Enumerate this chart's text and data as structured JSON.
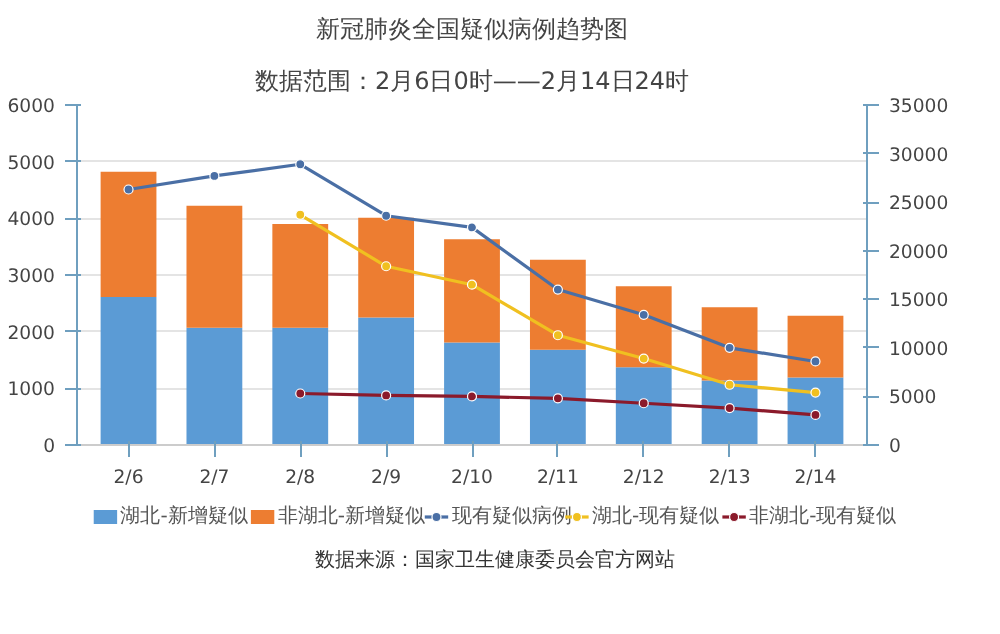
{
  "chart_data": {
    "type": "bar",
    "title": "新冠肺炎全国疑似病例趋势图",
    "subtitle": "数据范围：2月6日0时——2月14日24时",
    "categories": [
      "2/6",
      "2/7",
      "2/8",
      "2/9",
      "2/10",
      "2/11",
      "2/12",
      "2/13",
      "2/14"
    ],
    "stacked": true,
    "series": [
      {
        "name": "湖北-新增疑似",
        "color": "#5b9bd5",
        "values": [
          2610,
          2070,
          2070,
          2250,
          1810,
          1680,
          1370,
          1140,
          1190
        ]
      },
      {
        "name": "非湖北-新增疑似",
        "color": "#ed7d31",
        "values": [
          2210,
          2150,
          1830,
          1760,
          1820,
          1590,
          1430,
          1290,
          1090
        ]
      },
      {
        "name": "现有疑似病例",
        "type": "line",
        "axis": "y2",
        "color": "#4a6fa5",
        "values": [
          26300,
          27700,
          28900,
          23600,
          22400,
          16000,
          13400,
          10000,
          8600
        ]
      },
      {
        "name": "湖北-现有疑似",
        "type": "line",
        "axis": "y2",
        "color": "#f0c020",
        "values": [
          null,
          null,
          23700,
          18400,
          16500,
          11300,
          8900,
          6200,
          5400
        ]
      },
      {
        "name": "非湖北-现有疑似",
        "type": "line",
        "axis": "y2",
        "color": "#8b1a2b",
        "values": [
          null,
          null,
          5300,
          5100,
          5000,
          4800,
          4300,
          3800,
          3100
        ]
      }
    ],
    "ylim": [
      0,
      6000
    ],
    "yticks": [
      0,
      1000,
      2000,
      3000,
      4000,
      5000,
      6000
    ],
    "y2lim": [
      0,
      35000
    ],
    "y2ticks": [
      0,
      5000,
      10000,
      15000,
      20000,
      25000,
      30000,
      35000
    ],
    "grid": "y",
    "legend": "bottom",
    "marker": "circle",
    "line_style": "solid",
    "annotations": [
      "数据来源：国家卫生健康委员会官方网站"
    ]
  }
}
